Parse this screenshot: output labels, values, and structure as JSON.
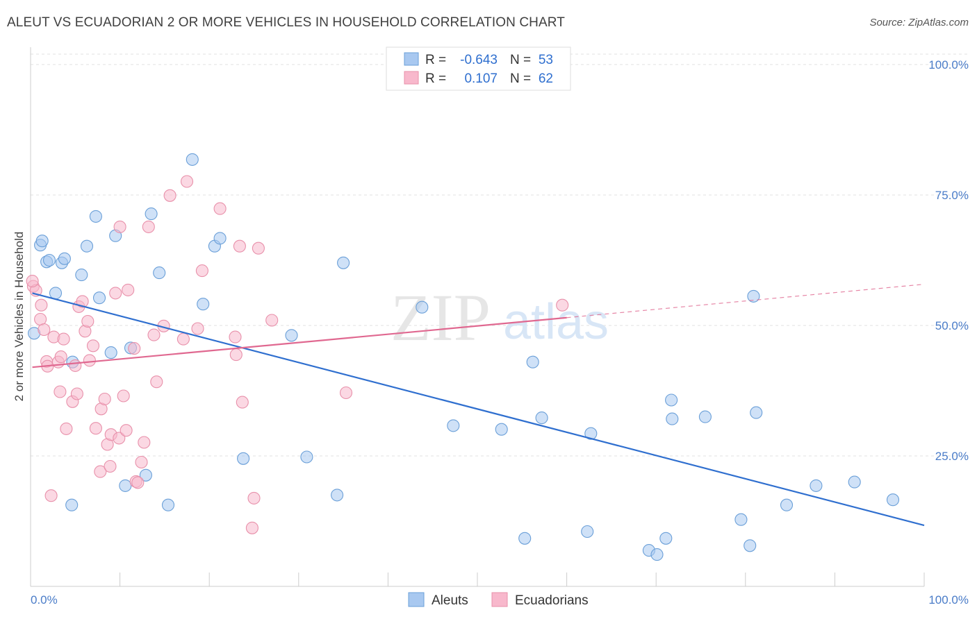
{
  "header": {
    "title": "ALEUT VS ECUADORIAN 2 OR MORE VEHICLES IN HOUSEHOLD CORRELATION CHART",
    "source": "Source: ZipAtlas.com"
  },
  "watermark": {
    "zip": "ZIP",
    "atlas": "atlas"
  },
  "chart_data": {
    "type": "scatter",
    "title": "ALEUT VS ECUADORIAN 2 OR MORE VEHICLES IN HOUSEHOLD CORRELATION CHART",
    "xlabel": "",
    "ylabel": "2 or more Vehicles in Household",
    "xlim": [
      0,
      100
    ],
    "ylim": [
      0,
      102
    ],
    "x_tick_labels": {
      "left": "0.0%",
      "right": "100.0%"
    },
    "y_ticks": [
      {
        "value": 25,
        "label": "25.0%"
      },
      {
        "value": 50,
        "label": "50.0%"
      },
      {
        "value": 75,
        "label": "75.0%"
      },
      {
        "value": 100,
        "label": "100.0%"
      }
    ],
    "grid": "horizontal dashed",
    "legend_position": "top-center",
    "stats": [
      {
        "r_label": "R =",
        "r_value": "-0.643",
        "n_label": "N =",
        "n_value": "53",
        "color": "#a8c8f0"
      },
      {
        "r_label": "R =",
        "r_value": "0.107",
        "n_label": "N =",
        "n_value": "62",
        "color": "#f8b8cc"
      }
    ],
    "series": [
      {
        "name": "Aleuts",
        "color": "#a8c8f0",
        "stroke": "#6a9fd8",
        "trend_color": "#2f6fcf",
        "trend": {
          "x0": 0.2,
          "y0": 56.2,
          "x1": 100,
          "y1": 11.7,
          "dashed_to": 100
        },
        "points": [
          [
            0.4,
            48.5
          ],
          [
            1.1,
            65.4
          ],
          [
            1.3,
            66.2
          ],
          [
            1.8,
            62.2
          ],
          [
            2.1,
            62.5
          ],
          [
            2.8,
            56.2
          ],
          [
            3.5,
            62
          ],
          [
            3.8,
            62.8
          ],
          [
            4.6,
            15.6
          ],
          [
            4.7,
            43
          ],
          [
            5.7,
            59.7
          ],
          [
            6.3,
            65.2
          ],
          [
            7.3,
            70.9
          ],
          [
            7.7,
            55.3
          ],
          [
            9,
            44.8
          ],
          [
            9.5,
            67.2
          ],
          [
            10.6,
            19.3
          ],
          [
            11.2,
            45.7
          ],
          [
            12.9,
            21.3
          ],
          [
            13.5,
            71.4
          ],
          [
            14.4,
            60.1
          ],
          [
            15.4,
            15.6
          ],
          [
            18.1,
            81.8
          ],
          [
            19.3,
            54.1
          ],
          [
            20.6,
            65.2
          ],
          [
            21.2,
            66.7
          ],
          [
            23.8,
            24.5
          ],
          [
            29.2,
            48.1
          ],
          [
            30.9,
            24.8
          ],
          [
            34.3,
            17.5
          ],
          [
            35,
            62
          ],
          [
            43.8,
            53.5
          ],
          [
            47.3,
            30.8
          ],
          [
            52.7,
            30.1
          ],
          [
            55.3,
            9.2
          ],
          [
            56.2,
            43
          ],
          [
            57.2,
            32.3
          ],
          [
            62.3,
            10.5
          ],
          [
            62.7,
            29.3
          ],
          [
            69.2,
            6.9
          ],
          [
            70.1,
            6.1
          ],
          [
            71.1,
            9.2
          ],
          [
            71.7,
            35.7
          ],
          [
            71.8,
            32.1
          ],
          [
            75.5,
            32.5
          ],
          [
            79.5,
            12.8
          ],
          [
            80.5,
            7.8
          ],
          [
            80.9,
            55.6
          ],
          [
            81.2,
            33.3
          ],
          [
            84.6,
            15.6
          ],
          [
            87.9,
            19.3
          ],
          [
            92.2,
            20
          ],
          [
            96.5,
            16.6
          ]
        ]
      },
      {
        "name": "Ecuadorians",
        "color": "#f8b8cc",
        "stroke": "#e890aa",
        "trend_color": "#e06890",
        "trend": {
          "x0": 0.2,
          "y0": 42,
          "x1": 60,
          "y1": 51.5,
          "dashed_to": 100,
          "y_end": 57.9
        },
        "points": [
          [
            0.3,
            57.5
          ],
          [
            0.6,
            56.7
          ],
          [
            1.1,
            51.2
          ],
          [
            1.2,
            53.9
          ],
          [
            1.5,
            49.2
          ],
          [
            1.8,
            43.1
          ],
          [
            1.9,
            42.2
          ],
          [
            2.3,
            17.4
          ],
          [
            2.6,
            47.8
          ],
          [
            3.1,
            43
          ],
          [
            3.3,
            37.3
          ],
          [
            3.4,
            44
          ],
          [
            3.7,
            47.4
          ],
          [
            4,
            30.2
          ],
          [
            4.7,
            35.4
          ],
          [
            5,
            42.3
          ],
          [
            5.2,
            36.9
          ],
          [
            5.4,
            53.6
          ],
          [
            5.8,
            54.6
          ],
          [
            6.1,
            48.9
          ],
          [
            6.4,
            50.8
          ],
          [
            6.6,
            43.3
          ],
          [
            7,
            46.1
          ],
          [
            7.3,
            30.3
          ],
          [
            7.8,
            22
          ],
          [
            7.9,
            34
          ],
          [
            8.3,
            35.9
          ],
          [
            8.6,
            27.2
          ],
          [
            8.9,
            23
          ],
          [
            9,
            29.1
          ],
          [
            9.5,
            56.2
          ],
          [
            9.9,
            28.4
          ],
          [
            10,
            68.9
          ],
          [
            10.4,
            36.5
          ],
          [
            10.7,
            29.9
          ],
          [
            10.9,
            56.8
          ],
          [
            11.6,
            45.6
          ],
          [
            11.8,
            20.1
          ],
          [
            12,
            19.9
          ],
          [
            12.4,
            23.8
          ],
          [
            12.7,
            27.6
          ],
          [
            13.2,
            68.9
          ],
          [
            13.8,
            48.2
          ],
          [
            14.1,
            39.2
          ],
          [
            14.9,
            49.9
          ],
          [
            15.6,
            74.9
          ],
          [
            17.1,
            47.4
          ],
          [
            17.5,
            77.6
          ],
          [
            18.7,
            49.4
          ],
          [
            19.2,
            60.5
          ],
          [
            21.2,
            72.4
          ],
          [
            22.9,
            47.8
          ],
          [
            23,
            44.4
          ],
          [
            23.4,
            65.2
          ],
          [
            23.7,
            35.3
          ],
          [
            24.8,
            11.2
          ],
          [
            25,
            16.9
          ],
          [
            25.5,
            64.8
          ],
          [
            27,
            51
          ],
          [
            35.3,
            37.1
          ],
          [
            59.5,
            53.9
          ],
          [
            0.2,
            58.5
          ]
        ]
      }
    ],
    "legend": [
      {
        "label": "Aleuts",
        "color": "#a8c8f0"
      },
      {
        "label": "Ecuadorians",
        "color": "#f8b8cc"
      }
    ]
  }
}
